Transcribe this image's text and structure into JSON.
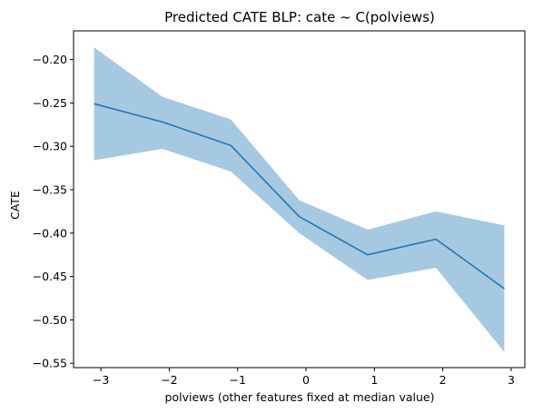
{
  "chart_data": {
    "type": "line",
    "title": "Predicted CATE BLP: cate ~ C(polviews)",
    "xlabel": "polviews (other features fixed at median value)",
    "ylabel": "CATE",
    "x": [
      -3.1,
      -2.1,
      -1.1,
      -0.1,
      0.9,
      1.9,
      2.9
    ],
    "series": [
      {
        "values": [
          -0.251,
          -0.272,
          -0.299,
          -0.381,
          -0.425,
          -0.407,
          -0.464
        ],
        "lower": [
          -0.316,
          -0.303,
          -0.329,
          -0.4,
          -0.454,
          -0.44,
          -0.537
        ],
        "upper": [
          -0.186,
          -0.243,
          -0.269,
          -0.362,
          -0.396,
          -0.375,
          -0.391
        ],
        "color": "#1f77b4",
        "band_color": "#1f77b4"
      }
    ],
    "xlim": [
      -3.4,
      3.2
    ],
    "ylim": [
      -0.555,
      -0.167
    ],
    "xticks": [
      -3,
      -2,
      -1,
      0,
      1,
      2,
      3
    ],
    "xtick_labels": [
      "−3",
      "−2",
      "−1",
      "0",
      "1",
      "2",
      "3"
    ],
    "yticks": [
      -0.2,
      -0.25,
      -0.3,
      -0.35,
      -0.4,
      -0.45,
      -0.5,
      -0.55
    ],
    "ytick_labels": [
      "−0.20",
      "−0.25",
      "−0.30",
      "−0.35",
      "−0.40",
      "−0.45",
      "−0.50",
      "−0.55"
    ],
    "grid": false,
    "legend": "none"
  }
}
